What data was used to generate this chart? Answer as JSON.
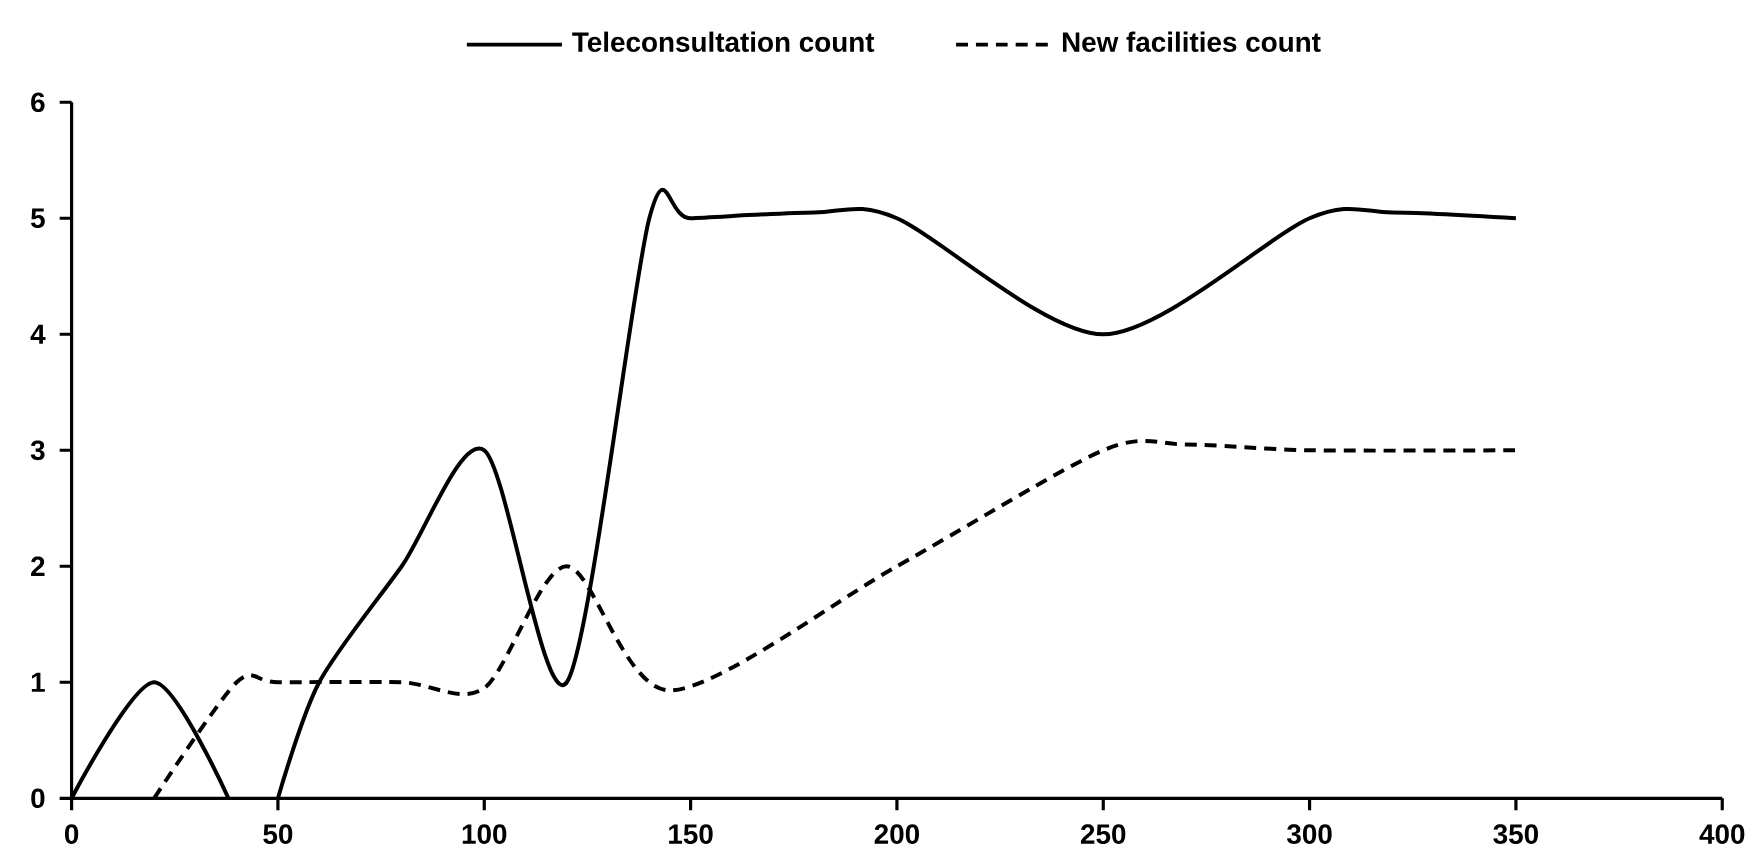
{
  "chart_data": {
    "type": "line",
    "xlim": [
      0,
      400
    ],
    "xticks": [
      0,
      50,
      100,
      150,
      200,
      250,
      300,
      350,
      400
    ],
    "ylim": [
      0,
      6
    ],
    "yticks": [
      0,
      1,
      2,
      3,
      4,
      5,
      6
    ],
    "grid": false,
    "legend": "top",
    "marker": "none",
    "series": [
      {
        "name": "Teleconsultation count",
        "color": "#000000",
        "line_style": "solid",
        "x": [
          0,
          20,
          38,
          45,
          50,
          60,
          80,
          100,
          120,
          140,
          150,
          180,
          200,
          250,
          300,
          320,
          350
        ],
        "values": [
          0,
          1,
          0,
          null,
          0,
          1,
          2,
          3,
          1,
          5,
          5,
          5.05,
          5,
          4,
          5,
          5.05,
          5
        ]
      },
      {
        "name": "New facilities count",
        "color": "#000000",
        "line_style": "dashed",
        "x": [
          20,
          40,
          50,
          80,
          100,
          120,
          145,
          200,
          250,
          270,
          300,
          350
        ],
        "values": [
          0,
          1,
          1,
          1,
          0.95,
          2,
          0.93,
          2,
          3,
          3.05,
          3,
          3
        ]
      }
    ]
  }
}
